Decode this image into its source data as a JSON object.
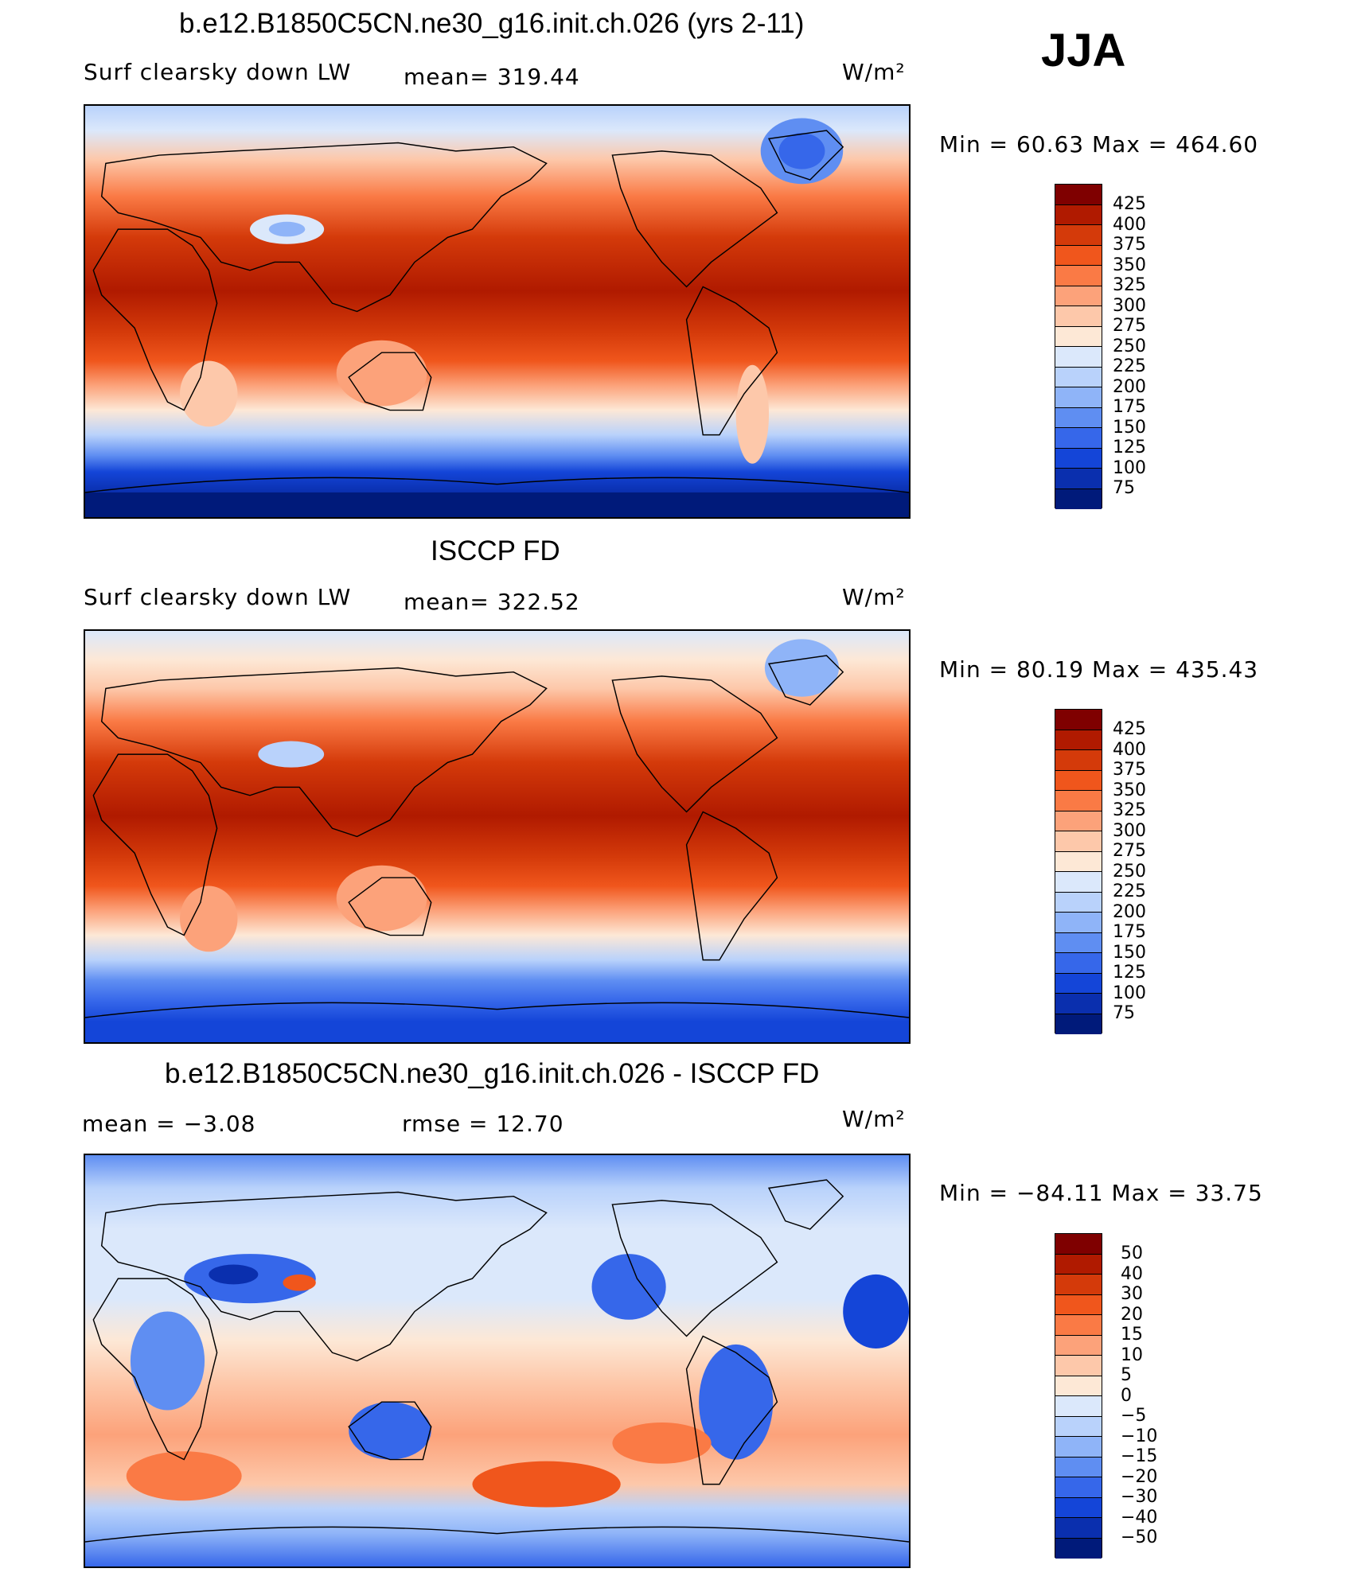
{
  "season": "JJA",
  "units": "W/m²",
  "panels": [
    {
      "title": "b.e12.B1850C5CN.ne30_g16.init.ch.026 (yrs 2-11)",
      "variable": "Surf clearsky down LW",
      "stat": "mean= 319.44",
      "minmax": "Min =   60.63 Max = 464.60"
    },
    {
      "title": "ISCCP FD",
      "variable": "Surf clearsky down LW",
      "stat": "mean= 322.52",
      "minmax": "Min =   80.19 Max = 435.43"
    },
    {
      "title": "b.e12.B1850C5CN.ne30_g16.init.ch.026 - ISCCP FD",
      "stat_mean": "mean =   −3.08",
      "stat_rmse": "rmse =   12.70",
      "minmax": "Min = −84.11 Max =   33.75"
    }
  ],
  "colorbar_abs": {
    "labels": [
      "425",
      "400",
      "375",
      "350",
      "325",
      "300",
      "275",
      "250",
      "225",
      "200",
      "175",
      "150",
      "125",
      "100",
      "75"
    ],
    "colors": [
      "#7f0000",
      "#b01a00",
      "#d43a0a",
      "#f0561c",
      "#fa7a45",
      "#fca27a",
      "#fdc8aa",
      "#fde8d6",
      "#dbe8fb",
      "#b9d2fb",
      "#8fb4f8",
      "#5f8ef2",
      "#3667ea",
      "#1445d8",
      "#0a2fae",
      "#001a7a"
    ]
  },
  "colorbar_diff": {
    "labels": [
      "50",
      "40",
      "30",
      "20",
      "15",
      "10",
      "5",
      "0",
      "−5",
      "−10",
      "−15",
      "−20",
      "−30",
      "−40",
      "−50"
    ],
    "colors": [
      "#7f0000",
      "#b01a00",
      "#d43a0a",
      "#f0561c",
      "#fa7a45",
      "#fca27a",
      "#fdc8aa",
      "#fde8d6",
      "#dbe8fb",
      "#b9d2fb",
      "#8fb4f8",
      "#5f8ef2",
      "#3667ea",
      "#1445d8",
      "#0a2fae",
      "#001a7a"
    ]
  }
}
